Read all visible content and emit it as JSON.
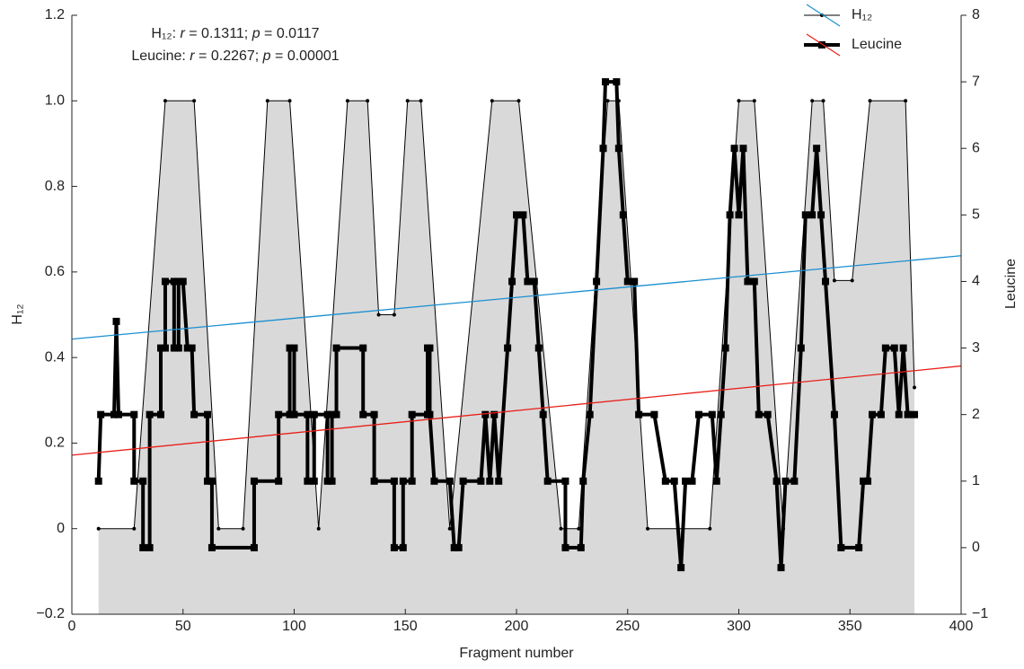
{
  "chart_data": {
    "type": "dual-line",
    "xlabel": "Fragment number",
    "ylabel": "H₁₂",
    "y2label": "Leucine",
    "annotations": [
      [
        "H₁₂: ",
        "r",
        " = 0.1311; ",
        "p",
        " = 0.0117"
      ],
      [
        "Leucine: ",
        "r",
        " = 0.2267; ",
        "p",
        " = 0.00001"
      ]
    ],
    "xlim": [
      0,
      400
    ],
    "xticks": [
      0,
      50,
      100,
      150,
      200,
      250,
      300,
      350,
      400
    ],
    "ylim": [
      -0.2,
      1.2
    ],
    "yticks": [
      {
        "value": -0.2,
        "label": "−0.2"
      },
      0,
      0.2,
      0.4,
      0.6,
      0.8,
      {
        "value": 1,
        "label": "1.0"
      },
      1.2
    ],
    "y2lim": [
      -1,
      8
    ],
    "y2ticks": [
      {
        "value": -1,
        "label": "−1"
      },
      0,
      1,
      2,
      3,
      4,
      5,
      6,
      7,
      8
    ],
    "series": [
      {
        "name": "H₁₂",
        "color": "#000000",
        "fill": "#d9d9d9",
        "x": [
          12,
          28,
          42,
          55,
          66,
          77,
          88,
          98,
          111,
          124,
          133,
          138,
          145,
          151,
          157,
          170,
          189,
          201,
          220,
          228,
          241,
          246,
          259,
          287,
          300,
          307,
          320,
          333,
          338,
          343,
          351,
          359,
          375,
          379
        ],
        "values": [
          0,
          0,
          1,
          1,
          0,
          0,
          1,
          1,
          0,
          1,
          1,
          0.5,
          0.5,
          1,
          1,
          0,
          1,
          1,
          0,
          0,
          1,
          1,
          0,
          0,
          1,
          1,
          0,
          1,
          1,
          0.58,
          0.58,
          1,
          1,
          0.33
        ]
      },
      {
        "name": "Leucine",
        "color": "#000000",
        "axis": "y2",
        "x": [
          12,
          13,
          19,
          20,
          21,
          28,
          28,
          32,
          32,
          35,
          35,
          40,
          40,
          42,
          42,
          46,
          46,
          48,
          48,
          50,
          52,
          54,
          55,
          61,
          61,
          63,
          63,
          82,
          82,
          93,
          93,
          98,
          98,
          100,
          100,
          106,
          106,
          109,
          109,
          115,
          115,
          117,
          117,
          119,
          119,
          131,
          131,
          136,
          136,
          145,
          145,
          149,
          149,
          153,
          153,
          160,
          160,
          161,
          161,
          163,
          170,
          172,
          174,
          176,
          184,
          186,
          188,
          190,
          192,
          196,
          198,
          200,
          203,
          205,
          208,
          210,
          212,
          214,
          222,
          222,
          229,
          230,
          233,
          236,
          239,
          240,
          245,
          246,
          248,
          250,
          253,
          255,
          262,
          267,
          271,
          274,
          276,
          279,
          282,
          288,
          290,
          292,
          294,
          296,
          298,
          300,
          302,
          304,
          307,
          309,
          313,
          317,
          319,
          321,
          325,
          328,
          330,
          333,
          335,
          337,
          339,
          343,
          346,
          354,
          356,
          358,
          360,
          364,
          366,
          370,
          372,
          374,
          376,
          379
        ],
        "values": [
          1,
          2,
          2,
          3.4,
          2,
          2,
          1,
          1,
          0,
          0,
          2,
          2,
          3,
          3,
          4,
          4,
          3,
          3,
          4,
          4,
          3,
          3,
          2,
          2,
          1,
          1,
          0,
          0,
          1,
          1,
          2,
          2,
          3,
          3,
          2,
          2,
          1,
          1,
          2,
          2,
          1,
          1,
          2,
          2,
          3,
          3,
          2,
          2,
          1,
          1,
          0,
          0,
          1,
          1,
          2,
          2,
          3,
          3,
          2,
          1,
          1,
          0,
          0,
          1,
          1,
          2,
          1,
          2,
          1,
          3,
          4,
          5,
          5,
          4,
          4,
          3,
          2,
          1,
          1,
          0,
          0,
          1,
          2,
          4,
          6,
          7,
          7,
          6,
          5,
          4,
          4,
          2,
          2,
          1,
          1,
          -0.3,
          1,
          1,
          2,
          2,
          1,
          2,
          3,
          5,
          6,
          5,
          6,
          4,
          4,
          2,
          2,
          1,
          -0.3,
          1,
          1,
          3,
          5,
          5,
          6,
          5,
          4,
          2,
          0,
          0,
          1,
          1,
          2,
          2,
          3,
          3,
          2,
          3,
          2,
          2
        ]
      }
    ],
    "trend_lines": [
      {
        "color": "#1a8fd1",
        "x": [
          0,
          400
        ],
        "values": [
          0.443,
          0.638
        ]
      },
      {
        "color": "#e8201a",
        "axis": "y2",
        "x": [
          0,
          400
        ],
        "values": [
          1.39,
          2.73
        ]
      }
    ]
  }
}
